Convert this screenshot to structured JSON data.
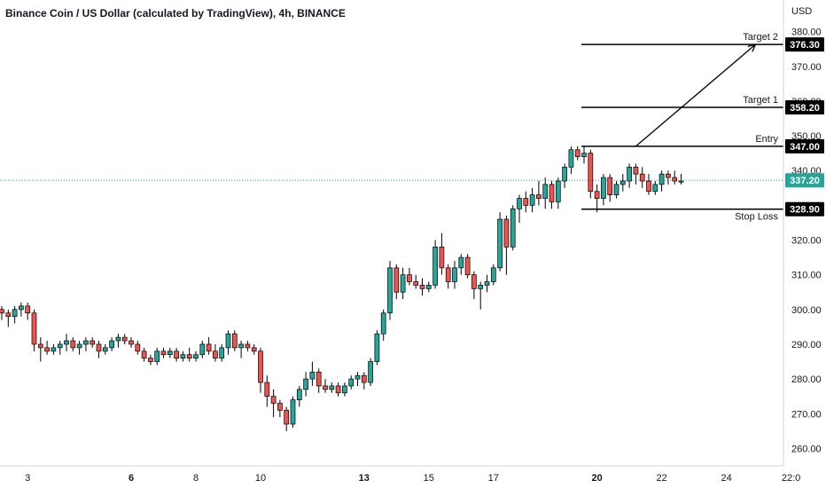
{
  "header": {
    "title": "Binance Coin / US Dollar (calculated by TradingView), 4h, BINANCE"
  },
  "colors": {
    "up": "#26a69a",
    "down": "#ef5350",
    "current_price_bg": "#26a69a",
    "level_bg": "#000000",
    "axis_text": "#131722",
    "current_line": "#26a69a"
  },
  "chart_data": {
    "type": "candlestick",
    "title": "Binance Coin / US Dollar (calculated by TradingView), 4h, BINANCE",
    "currency_label": "USD",
    "ylim": [
      255,
      384
    ],
    "y_ticks": [
      "260.00",
      "270.00",
      "280.00",
      "290.00",
      "300.00",
      "310.00",
      "320.00",
      "330.00",
      "340.00",
      "350.00",
      "360.00",
      "370.00",
      "380.00"
    ],
    "x_ticks": [
      {
        "label": "3",
        "bar": 4,
        "bold": false
      },
      {
        "label": "6",
        "bar": 20,
        "bold": true
      },
      {
        "label": "8",
        "bar": 30,
        "bold": false
      },
      {
        "label": "10",
        "bar": 40,
        "bold": false
      },
      {
        "label": "13",
        "bar": 56,
        "bold": true
      },
      {
        "label": "15",
        "bar": 66,
        "bold": false
      },
      {
        "label": "17",
        "bar": 76,
        "bold": false
      },
      {
        "label": "20",
        "bar": 92,
        "bold": true
      },
      {
        "label": "22",
        "bar": 102,
        "bold": false
      },
      {
        "label": "24",
        "bar": 112,
        "bold": false
      },
      {
        "label": "22:0",
        "bar": 122,
        "bold": false
      }
    ],
    "current_price": {
      "label": "337.20",
      "value": 337.2
    },
    "levels": [
      {
        "name": "Target 2",
        "label": "376.30",
        "value": 376.3
      },
      {
        "name": "Target 1",
        "label": "358.20",
        "value": 358.2
      },
      {
        "name": "Entry",
        "label": "347.00",
        "value": 347.0
      },
      {
        "name": "Stop Loss",
        "label": "328.90",
        "value": 328.9
      }
    ],
    "projection_arrow": [
      {
        "bar": 98,
        "value": 347.0
      },
      {
        "bar": 116.5,
        "value": 376.3
      }
    ],
    "candles": [
      [
        300,
        301,
        297,
        299
      ],
      [
        299,
        300,
        295,
        298
      ],
      [
        298,
        301,
        296,
        300
      ],
      [
        300,
        302,
        298,
        301
      ],
      [
        301,
        302,
        297,
        299
      ],
      [
        299,
        300,
        288,
        290
      ],
      [
        290,
        292,
        285,
        289
      ],
      [
        289,
        291,
        287,
        288
      ],
      [
        288,
        290,
        287,
        289
      ],
      [
        289,
        291,
        287,
        290
      ],
      [
        290,
        293,
        288,
        291
      ],
      [
        291,
        292,
        288,
        289
      ],
      [
        289,
        291,
        287,
        290
      ],
      [
        290,
        292,
        288,
        291
      ],
      [
        291,
        292,
        289,
        290
      ],
      [
        290,
        291,
        286,
        288
      ],
      [
        288,
        290,
        287,
        289
      ],
      [
        289,
        292,
        288,
        291
      ],
      [
        291,
        293,
        289,
        292
      ],
      [
        292,
        293,
        290,
        291
      ],
      [
        291,
        292,
        289,
        290
      ],
      [
        290,
        291,
        287,
        288
      ],
      [
        288,
        289,
        285,
        286
      ],
      [
        286,
        287,
        284,
        285
      ],
      [
        285,
        289,
        284,
        288
      ],
      [
        288,
        289,
        286,
        287
      ],
      [
        287,
        289,
        286,
        288
      ],
      [
        288,
        289,
        285,
        286
      ],
      [
        286,
        288,
        285,
        287
      ],
      [
        287,
        289,
        285,
        286
      ],
      [
        286,
        288,
        285,
        287
      ],
      [
        287,
        291,
        286,
        290
      ],
      [
        290,
        292,
        287,
        288
      ],
      [
        288,
        290,
        285,
        286
      ],
      [
        286,
        290,
        285,
        289
      ],
      [
        289,
        294,
        287,
        293
      ],
      [
        293,
        294,
        288,
        289
      ],
      [
        289,
        291,
        286,
        290
      ],
      [
        290,
        291,
        288,
        289
      ],
      [
        289,
        290,
        287,
        288
      ],
      [
        288,
        289,
        276,
        279
      ],
      [
        279,
        281,
        272,
        275
      ],
      [
        275,
        277,
        269,
        273
      ],
      [
        273,
        274,
        269,
        271
      ],
      [
        271,
        272,
        265,
        267
      ],
      [
        267,
        275,
        266,
        274
      ],
      [
        274,
        278,
        272,
        277
      ],
      [
        277,
        282,
        275,
        280
      ],
      [
        280,
        285,
        278,
        282
      ],
      [
        282,
        283,
        276,
        278
      ],
      [
        278,
        280,
        276,
        277
      ],
      [
        277,
        279,
        276,
        278
      ],
      [
        278,
        279,
        275,
        276
      ],
      [
        276,
        279,
        275,
        278
      ],
      [
        278,
        281,
        277,
        280
      ],
      [
        280,
        282,
        278,
        281
      ],
      [
        281,
        282,
        277,
        279
      ],
      [
        279,
        286,
        278,
        285
      ],
      [
        285,
        294,
        284,
        293
      ],
      [
        293,
        300,
        291,
        299
      ],
      [
        299,
        314,
        297,
        312
      ],
      [
        312,
        313,
        303,
        305
      ],
      [
        305,
        312,
        303,
        310
      ],
      [
        310,
        312,
        307,
        308
      ],
      [
        308,
        310,
        306,
        307
      ],
      [
        307,
        309,
        304,
        306
      ],
      [
        306,
        308,
        305,
        307
      ],
      [
        307,
        320,
        306,
        318
      ],
      [
        318,
        322,
        310,
        312
      ],
      [
        312,
        313,
        306,
        308
      ],
      [
        308,
        314,
        306,
        312
      ],
      [
        312,
        316,
        310,
        315
      ],
      [
        315,
        316,
        309,
        310
      ],
      [
        310,
        311,
        303,
        306
      ],
      [
        306,
        308,
        300,
        307
      ],
      [
        307,
        310,
        305,
        308
      ],
      [
        308,
        313,
        307,
        312
      ],
      [
        312,
        328,
        311,
        326
      ],
      [
        326,
        327,
        310,
        318
      ],
      [
        318,
        330,
        317,
        329
      ],
      [
        329,
        333,
        325,
        332
      ],
      [
        332,
        334,
        328,
        330
      ],
      [
        330,
        335,
        328,
        333
      ],
      [
        333,
        337,
        330,
        332
      ],
      [
        332,
        338,
        329,
        336
      ],
      [
        336,
        337,
        329,
        331
      ],
      [
        331,
        338,
        329,
        337
      ],
      [
        337,
        342,
        335,
        341
      ],
      [
        341,
        347,
        339,
        346
      ],
      [
        346,
        347,
        343,
        344
      ],
      [
        344,
        347,
        342,
        345
      ],
      [
        345,
        346,
        332,
        334
      ],
      [
        334,
        336,
        328,
        332
      ],
      [
        332,
        339,
        330,
        338
      ],
      [
        338,
        339,
        331,
        333
      ],
      [
        333,
        337,
        332,
        336
      ],
      [
        336,
        339,
        334,
        337
      ],
      [
        337,
        342,
        335,
        341
      ],
      [
        341,
        342,
        336,
        339
      ],
      [
        339,
        341,
        335,
        337
      ],
      [
        337,
        339,
        333,
        334
      ],
      [
        334,
        337,
        333,
        336
      ],
      [
        336,
        340,
        334,
        339
      ],
      [
        339,
        340,
        336,
        338
      ],
      [
        338,
        340,
        336,
        337
      ],
      [
        337,
        339,
        336,
        337
      ]
    ]
  }
}
